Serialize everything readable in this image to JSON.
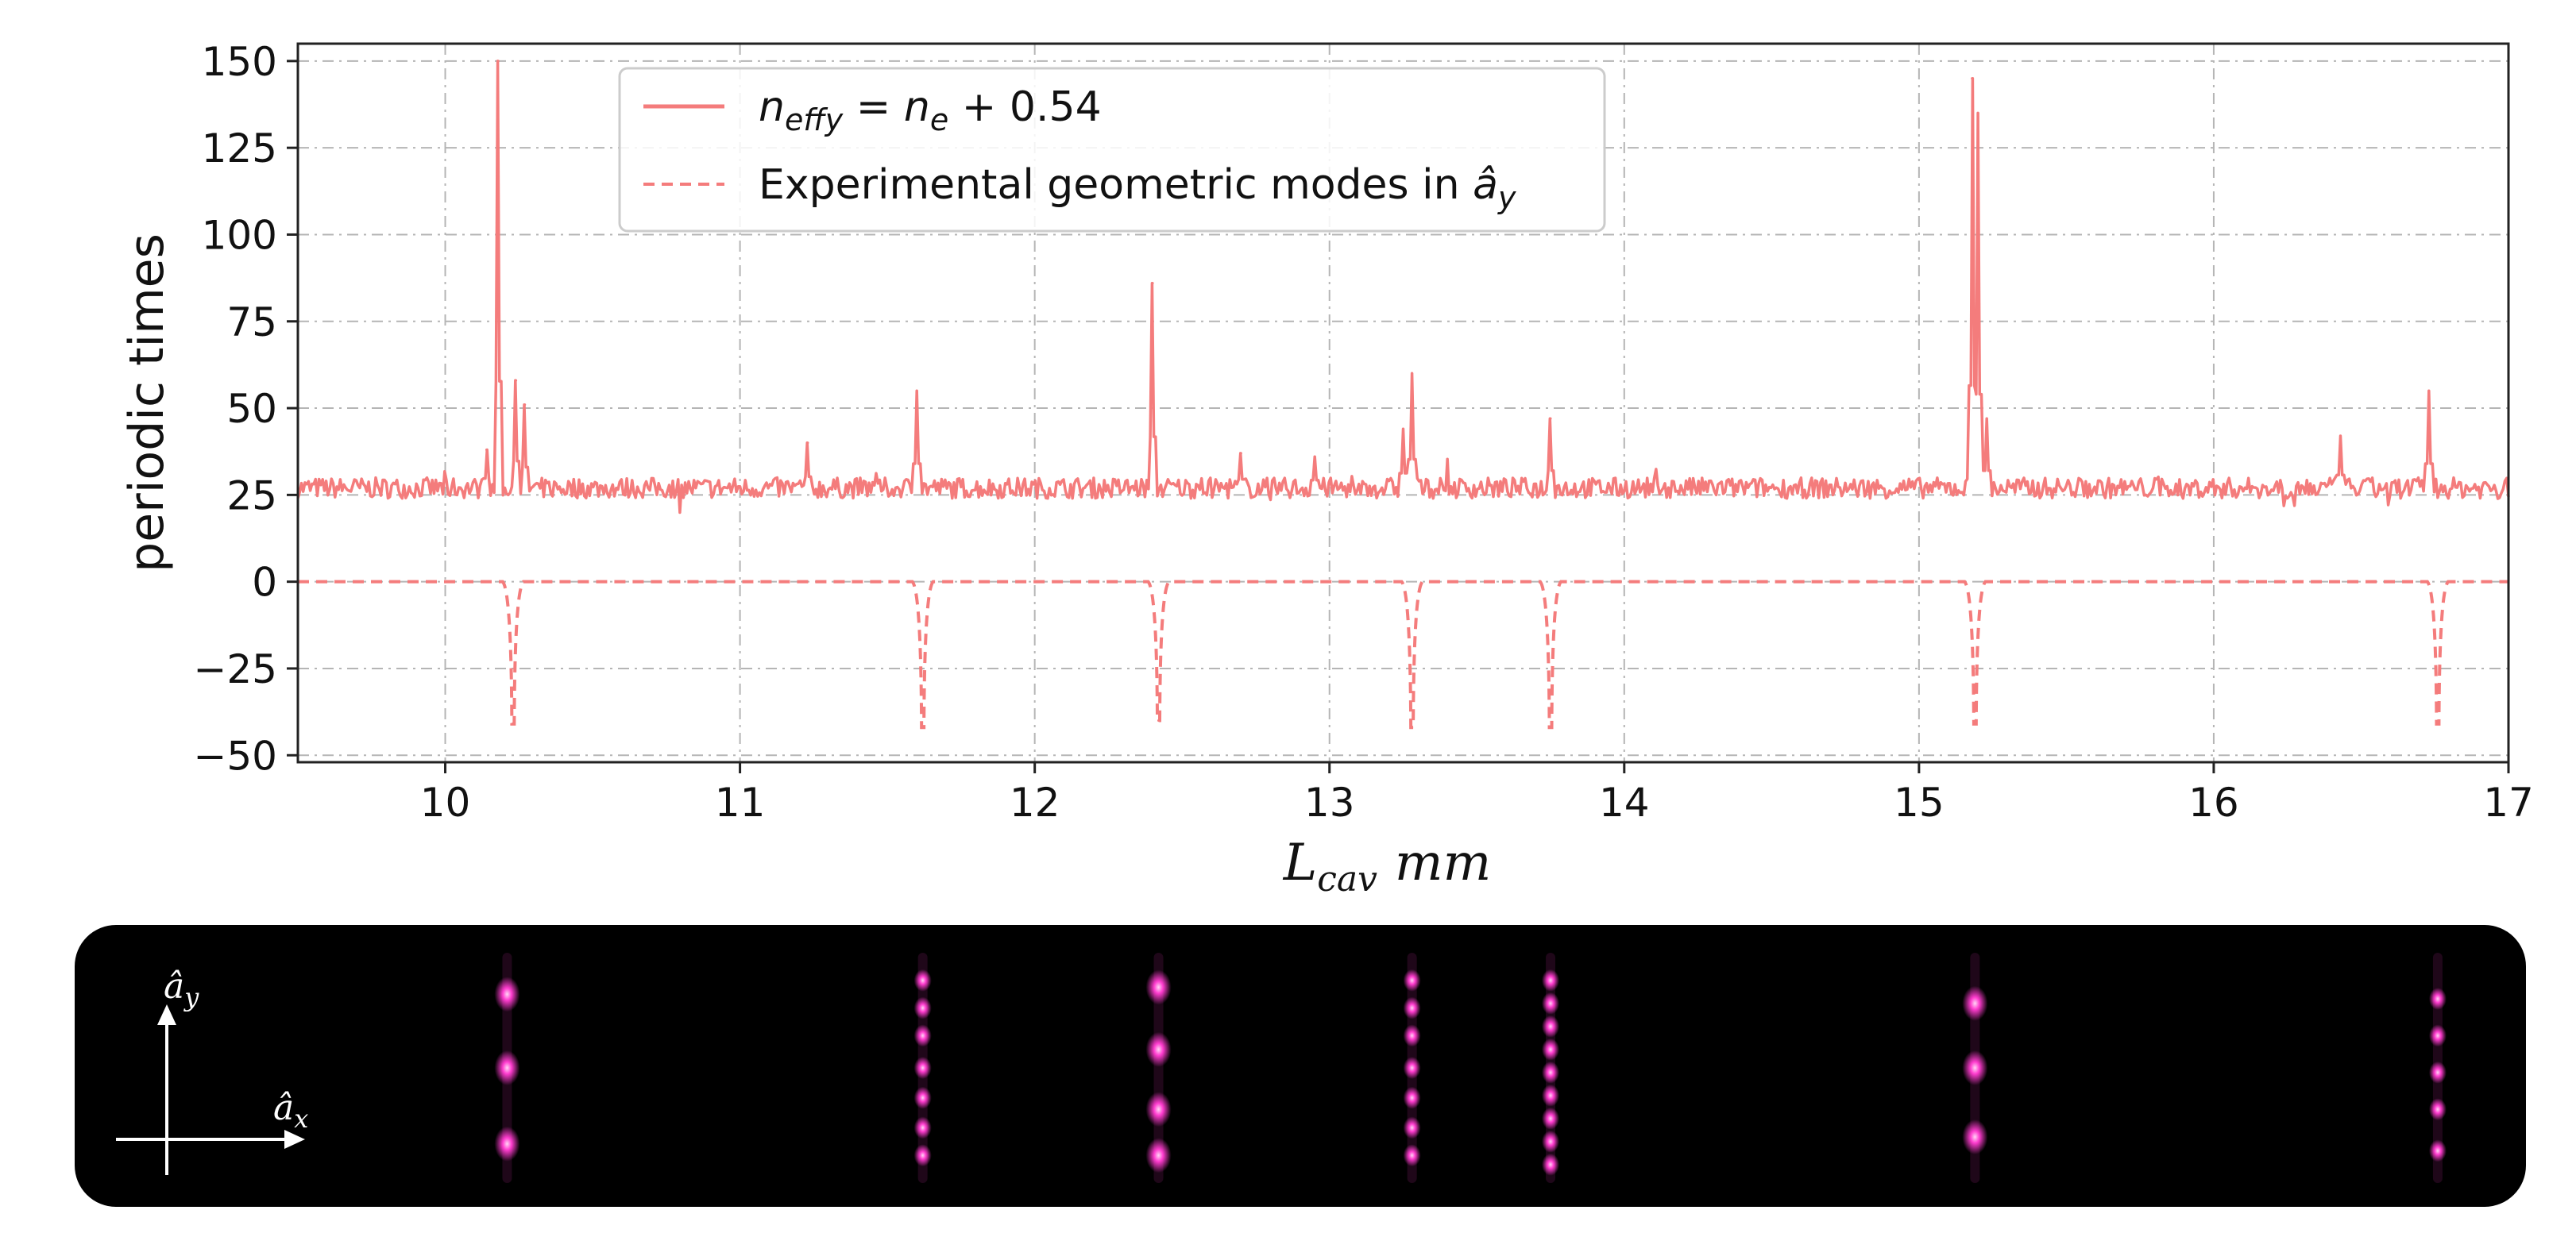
{
  "chart_data": {
    "type": "line",
    "title": "",
    "xlabel": "L_cav mm",
    "xlabel_main": "L",
    "xlabel_sub": "cav",
    "xlabel_unit": "mm",
    "ylabel": "periodic times",
    "xlim": [
      9.5,
      17
    ],
    "ylim": [
      -52,
      155
    ],
    "xticks": [
      10,
      11,
      12,
      13,
      14,
      15,
      16,
      17
    ],
    "xtick_labels": [
      "10",
      "11",
      "12",
      "13",
      "14",
      "15",
      "16",
      "17"
    ],
    "yticks": [
      -50,
      -25,
      0,
      25,
      50,
      75,
      100,
      125,
      150
    ],
    "ytick_labels": [
      "−50",
      "−25",
      "0",
      "25",
      "50",
      "75",
      "100",
      "125",
      "150"
    ],
    "grid": true,
    "legend_position": "top-center",
    "series": [
      {
        "name": "n_effy = n_e + 0.54",
        "style": "solid",
        "color": "#f47c7c",
        "baseline": 27,
        "noise_amplitude": 3,
        "peaks": [
          {
            "x": 10.18,
            "y": 150
          },
          {
            "x": 10.24,
            "y": 58
          },
          {
            "x": 10.27,
            "y": 51
          },
          {
            "x": 10.14,
            "y": 38
          },
          {
            "x": 11.23,
            "y": 40
          },
          {
            "x": 11.6,
            "y": 55
          },
          {
            "x": 12.4,
            "y": 86
          },
          {
            "x": 12.7,
            "y": 37
          },
          {
            "x": 12.95,
            "y": 36
          },
          {
            "x": 13.28,
            "y": 60
          },
          {
            "x": 13.25,
            "y": 44
          },
          {
            "x": 13.75,
            "y": 47
          },
          {
            "x": 15.18,
            "y": 145
          },
          {
            "x": 15.2,
            "y": 135
          },
          {
            "x": 15.23,
            "y": 47
          },
          {
            "x": 16.43,
            "y": 42
          },
          {
            "x": 16.73,
            "y": 55
          }
        ]
      },
      {
        "name": "Experimental geometric modes in â_y",
        "style": "dashed",
        "color": "#f47c7c",
        "baseline": 0,
        "dips": [
          {
            "x": 10.23,
            "y": -41
          },
          {
            "x": 11.62,
            "y": -42
          },
          {
            "x": 12.42,
            "y": -40
          },
          {
            "x": 13.28,
            "y": -42
          },
          {
            "x": 13.75,
            "y": -42
          },
          {
            "x": 15.19,
            "y": -41
          },
          {
            "x": 16.76,
            "y": -41
          }
        ]
      }
    ]
  },
  "legend": {
    "entry1": {
      "n": "n",
      "sub1": "effy",
      "eq": " = ",
      "n2": "n",
      "sub2": "e",
      "rest": " + 0.54"
    },
    "entry2": {
      "text": "Experimental geometric modes in ",
      "a": "â",
      "sub": "y"
    }
  },
  "image_panel": {
    "axis_x_label": "â",
    "axis_x_sub": "x",
    "axis_y_label": "â",
    "axis_y_sub": "y",
    "spot_color": "#ff3ccf",
    "modes": [
      {
        "x": 10.21,
        "spots": [
          0.18,
          0.5,
          0.83
        ]
      },
      {
        "x": 11.62,
        "spots": [
          0.12,
          0.24,
          0.36,
          0.5,
          0.63,
          0.76,
          0.88
        ]
      },
      {
        "x": 12.42,
        "spots": [
          0.15,
          0.42,
          0.68,
          0.88
        ]
      },
      {
        "x": 13.28,
        "spots": [
          0.12,
          0.24,
          0.36,
          0.5,
          0.63,
          0.76,
          0.88
        ]
      },
      {
        "x": 13.75,
        "spots": [
          0.12,
          0.22,
          0.32,
          0.42,
          0.52,
          0.62,
          0.72,
          0.82,
          0.92
        ]
      },
      {
        "x": 15.19,
        "spots": [
          0.22,
          0.5,
          0.8
        ]
      },
      {
        "x": 16.76,
        "spots": [
          0.2,
          0.36,
          0.52,
          0.68,
          0.86
        ]
      }
    ]
  }
}
